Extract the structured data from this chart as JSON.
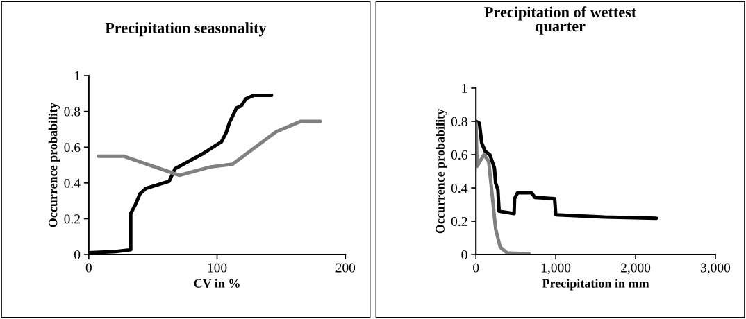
{
  "chart_data": [
    {
      "type": "line",
      "title": "Precipitation seasonality",
      "xlabel": "CV in %",
      "ylabel": "Occurrence probability",
      "xlim": [
        0,
        200
      ],
      "xticks": [
        0,
        100,
        200
      ],
      "ylim": [
        0,
        1
      ],
      "yticks": [
        0,
        0.2,
        0.4,
        0.6,
        0.8,
        1
      ],
      "marker": "none",
      "line_style": "solid",
      "series": [
        {
          "color": "#000000",
          "x": [
            0,
            21,
            32.7,
            32.7,
            36.4,
            40,
            44.6,
            62.7,
            67.2,
            88,
            103.4,
            107,
            109.8,
            115.2,
            118.8,
            122.4,
            128.8,
            142.4
          ],
          "values": [
            0.01,
            0.017,
            0.027,
            0.23,
            0.28,
            0.34,
            0.37,
            0.41,
            0.48,
            0.56,
            0.63,
            0.68,
            0.74,
            0.82,
            0.83,
            0.87,
            0.89,
            0.89
          ]
        },
        {
          "color": "#808080",
          "x": [
            7.4,
            27,
            70.6,
            95,
            112,
            146,
            165,
            180.4
          ],
          "values": [
            0.55,
            0.55,
            0.443,
            0.49,
            0.505,
            0.686,
            0.744,
            0.744
          ]
        }
      ]
    },
    {
      "type": "line",
      "title": "Precipitation of wettest\nquarter",
      "xlabel": "Precipitation in mm",
      "ylabel": "Occurrence probability",
      "xlim": [
        0,
        3000
      ],
      "xticks": [
        0,
        {
          "value": 1000,
          "label": "1,000"
        },
        {
          "value": 2000,
          "label": "2,000"
        },
        {
          "value": 3000,
          "label": "3,000"
        }
      ],
      "ylim": [
        0,
        1
      ],
      "yticks": [
        0,
        0.2,
        0.4,
        0.6,
        0.8,
        1
      ],
      "marker": "none",
      "line_style": "solid",
      "series": [
        {
          "color": "#000000",
          "x": [
            0,
            43,
            72,
            116,
            174,
            232,
            246,
            275,
            290,
            478,
            484,
            522,
            696,
            739,
            986,
            1000,
            1609,
            2261
          ],
          "values": [
            0.8,
            0.79,
            0.67,
            0.62,
            0.6,
            0.52,
            0.43,
            0.39,
            0.26,
            0.246,
            0.336,
            0.371,
            0.371,
            0.343,
            0.336,
            0.239,
            0.225,
            0.218
          ]
        },
        {
          "color": "#808080",
          "x": [
            0,
            14,
            101,
            159,
            203,
            246,
            304,
            391,
            667
          ],
          "values": [
            0.79,
            0.53,
            0.6,
            0.56,
            0.36,
            0.156,
            0.044,
            0.01,
            0.003
          ]
        }
      ]
    }
  ]
}
